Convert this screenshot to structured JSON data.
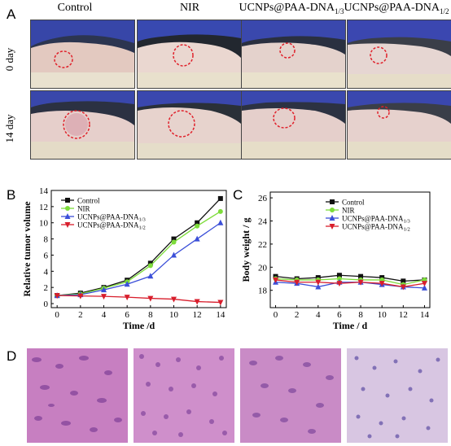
{
  "panel_a": {
    "letter": "A",
    "columns": [
      {
        "main": "Control",
        "sub": ""
      },
      {
        "main": "NIR",
        "sub": ""
      },
      {
        "main": "UCNPs@PAA-DNA",
        "sub": "1/3"
      },
      {
        "main": "UCNPs@PAA-DNA",
        "sub": "1/2"
      }
    ],
    "rows": [
      "0 day",
      "14 day"
    ]
  },
  "panel_b": {
    "letter": "B"
  },
  "panel_c": {
    "letter": "C"
  },
  "panel_d": {
    "letter": "D"
  },
  "colors": {
    "control": "#111111",
    "nir": "#7ddc3a",
    "dna13": "#3b4fd8",
    "dna12": "#d81e2c",
    "ring": "#e0202a"
  },
  "chart_data": [
    {
      "type": "line",
      "xlabel": "Time /d",
      "ylabel": "Relative tumor volume",
      "xlim": [
        -0.5,
        14.5
      ],
      "ylim": [
        -0.5,
        14
      ],
      "xticks": [
        0,
        2,
        4,
        6,
        8,
        10,
        12,
        14
      ],
      "yticks": [
        0,
        2,
        4,
        6,
        8,
        10,
        12,
        14
      ],
      "legend": "top-left",
      "x": [
        0,
        2,
        4,
        6,
        8,
        10,
        12,
        14
      ],
      "series": [
        {
          "name": "Control",
          "marker": "square",
          "values": [
            1.0,
            1.3,
            2.0,
            2.9,
            5.0,
            8.0,
            10.0,
            13.0
          ]
        },
        {
          "name": "NIR",
          "marker": "circle",
          "values": [
            1.0,
            1.2,
            1.9,
            2.7,
            4.7,
            7.6,
            9.6,
            11.4
          ]
        },
        {
          "name": "UCNPs@PAA-DNA",
          "name_sub": "1/3",
          "marker": "triangle-up",
          "values": [
            1.0,
            1.1,
            1.7,
            2.4,
            3.4,
            6.0,
            8.0,
            10.0
          ]
        },
        {
          "name": "UCNPs@PAA-DNA",
          "name_sub": "1/2",
          "marker": "triangle-down",
          "values": [
            1.0,
            0.95,
            0.9,
            0.8,
            0.65,
            0.55,
            0.25,
            0.15
          ]
        }
      ]
    },
    {
      "type": "line",
      "xlabel": "Time / d",
      "ylabel": "Body weight / g",
      "xlim": [
        -0.5,
        14.5
      ],
      "ylim": [
        16.5,
        26.5
      ],
      "xticks": [
        0,
        2,
        4,
        6,
        8,
        10,
        12,
        14
      ],
      "yticks": [
        18,
        20,
        22,
        24,
        26
      ],
      "legend": "top-right",
      "x": [
        0,
        2,
        4,
        6,
        8,
        10,
        12,
        14
      ],
      "series": [
        {
          "name": "Control",
          "marker": "square",
          "values": [
            19.2,
            19.0,
            19.1,
            19.3,
            19.2,
            19.1,
            18.8,
            18.9
          ]
        },
        {
          "name": "NIR",
          "marker": "circle",
          "values": [
            19.0,
            18.9,
            18.9,
            19.0,
            18.9,
            18.9,
            18.5,
            18.9
          ]
        },
        {
          "name": "UCNPs@PAA-DNA",
          "name_sub": "1/3",
          "marker": "triangle-up",
          "values": [
            18.7,
            18.6,
            18.3,
            18.7,
            18.7,
            18.5,
            18.3,
            18.2
          ]
        },
        {
          "name": "UCNPs@PAA-DNA",
          "name_sub": "1/2",
          "marker": "triangle-down",
          "values": [
            18.9,
            18.7,
            18.7,
            18.6,
            18.7,
            18.6,
            18.3,
            18.6
          ]
        }
      ]
    }
  ]
}
